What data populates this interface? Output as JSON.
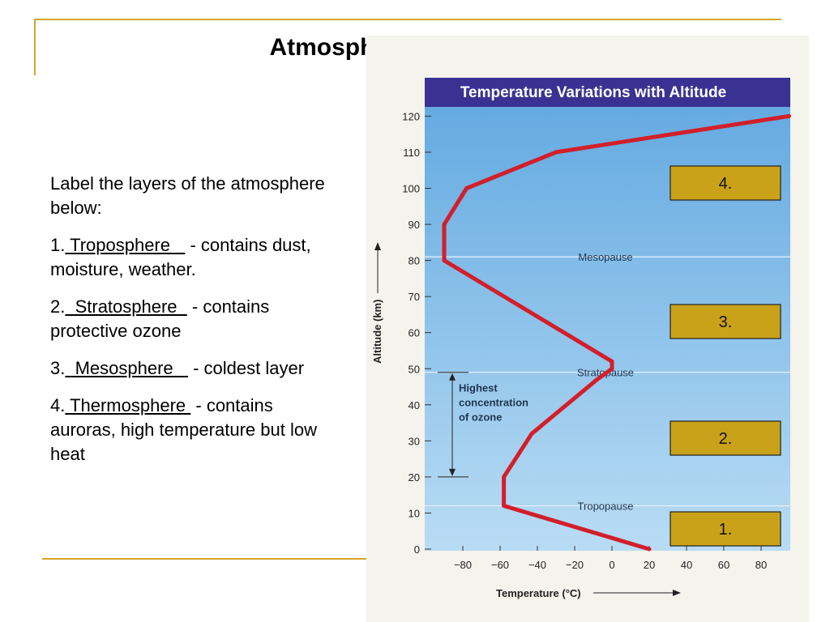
{
  "slide": {
    "title": "Atmospheric Structure",
    "prompt": "Label the layers of the atmosphere below:",
    "answers": [
      {
        "num": "1.",
        "answer": " Troposphere   ",
        "desc": " - contains dust, moisture, weather."
      },
      {
        "num": "2.",
        "answer": "  Stratosphere  ",
        "desc": " - contains protective ozone"
      },
      {
        "num": "3.",
        "answer": "  Mesosphere   ",
        "desc": " - coldest layer"
      },
      {
        "num": "4.",
        "answer": " Thermosphere ",
        "desc": " - contains auroras, high temperature but low heat"
      }
    ],
    "label_boxes": [
      "4.",
      "3.",
      "2.",
      "1."
    ]
  },
  "colors": {
    "rule": "#d4a52a",
    "chart_bg": "#86c2ea",
    "title_bar": "#3a3292",
    "curve": "#d21f2a",
    "label_box": "#c9a21a"
  },
  "chart_data": {
    "type": "line",
    "title": "Temperature Variations with Altitude",
    "xlabel": "Temperature (°C)",
    "ylabel": "Altitude (km)",
    "xlim": [
      -100,
      100
    ],
    "ylim": [
      0,
      125
    ],
    "xticks": [
      -80,
      -60,
      -40,
      -20,
      0,
      20,
      40,
      60,
      80
    ],
    "xtick_labels": [
      "−80",
      "−60",
      "−40",
      "−20",
      "0",
      "20",
      "40",
      "60",
      "80"
    ],
    "yticks": [
      0,
      10,
      20,
      30,
      40,
      50,
      60,
      70,
      80,
      90,
      100,
      110,
      120
    ],
    "series": [
      {
        "x": [
          20,
          -58,
          -58,
          -43,
          -8,
          0,
          0,
          -90,
          -90,
          -78,
          -30,
          95
        ],
        "y": [
          0,
          12,
          20,
          32,
          47,
          50,
          52,
          80,
          90,
          100,
          110,
          120
        ]
      }
    ],
    "boundaries": [
      {
        "label": "Mesopause",
        "altitude": 81
      },
      {
        "label": "Stratopause",
        "altitude": 49
      },
      {
        "label": "Tropopause",
        "altitude": 12
      }
    ],
    "ozone": {
      "label_lines": [
        "Highest",
        "concentration",
        "of ozone"
      ],
      "from": 20,
      "to": 49
    }
  }
}
